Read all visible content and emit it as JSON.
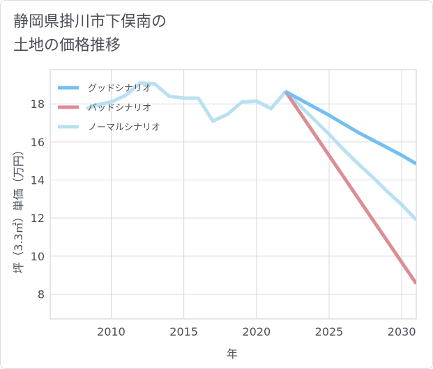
{
  "title_line1": "静岡県掛川市下俣南の",
  "title_line2": "土地の価格推移",
  "chart_data": {
    "type": "line",
    "xlabel": "年",
    "ylabel": "坪（3.3㎡）単価（万円）",
    "xlim": [
      2005.8,
      2031
    ],
    "ylim": [
      6.7,
      19.8
    ],
    "xticks": [
      2010,
      2015,
      2020,
      2025,
      2030
    ],
    "yticks": [
      8,
      10,
      12,
      14,
      16,
      18
    ],
    "grid": true,
    "legend_position": "top-left",
    "series": [
      {
        "name": "グッドシナリオ",
        "color": "#74bff0",
        "x": [
          2022,
          2025,
          2026,
          2027,
          2028,
          2029,
          2030,
          2031
        ],
        "y": [
          18.65,
          17.4,
          16.95,
          16.5,
          16.1,
          15.7,
          15.3,
          14.85
        ]
      },
      {
        "name": "バッドシナリオ",
        "color": "#dc8d93",
        "x": [
          2022,
          2031
        ],
        "y": [
          18.65,
          8.55
        ]
      },
      {
        "name": "ノーマルシナリオ",
        "color": "#b9e0f1",
        "x": [
          2008.3,
          2009,
          2010,
          2011,
          2012,
          2013,
          2014,
          2015,
          2016,
          2017,
          2018,
          2019,
          2020,
          2021,
          2022,
          2023,
          2024,
          2025,
          2026,
          2027,
          2028,
          2029,
          2030,
          2031
        ],
        "y": [
          17.75,
          17.95,
          18.1,
          18.45,
          19.1,
          19.05,
          18.4,
          18.3,
          18.3,
          17.1,
          17.45,
          18.1,
          18.15,
          17.75,
          18.65,
          17.9,
          17.15,
          16.4,
          15.6,
          14.85,
          14.15,
          13.4,
          12.7,
          11.9
        ]
      }
    ]
  }
}
